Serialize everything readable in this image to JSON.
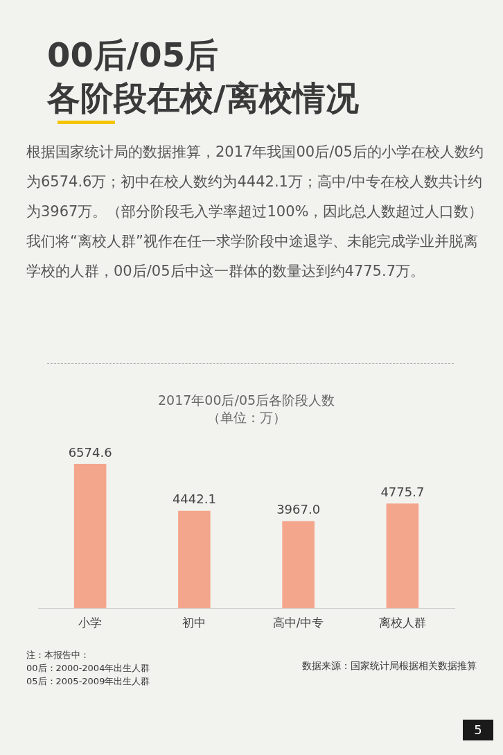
{
  "chart_data": {
    "type": "bar",
    "title": "2017年00后/05后各阶段人数",
    "subtitle": "（单位：万）",
    "categories": [
      "小学",
      "初中",
      "高中/中专",
      "离校人群"
    ],
    "values": [
      6574.6,
      4442.1,
      3967.0,
      4775.7
    ],
    "value_labels": [
      "6574.6",
      "4442.1",
      "3967.0",
      "4775.7"
    ],
    "color": "#f4a68c",
    "grid": false,
    "legend": false,
    "tick_labels": "x",
    "annotations": [
      "00后/05后",
      "各阶段在校/离校情况",
      "根据国家统计局的数据推算，2017年我国00后/05后的小学在校人数约为6574.6万；初中在校人数约为4442.1万；高中/中专在校人数共计约为3967万。（部分阶段毛入学率超过100%，因此总人数超过人口数）",
      "我们将“离校人群”视作在任一求学阶段中途退学、未能完成学业并脱离学校的人群，00后/05后中这一群体的数量达到约4775.7万。",
      "注：本报告中：\n00后：2000-2004年出生人群\n05后：2005-2009年出生人群",
      "数据来源：国家统计局根据相关数据推算",
      "5"
    ]
  }
}
